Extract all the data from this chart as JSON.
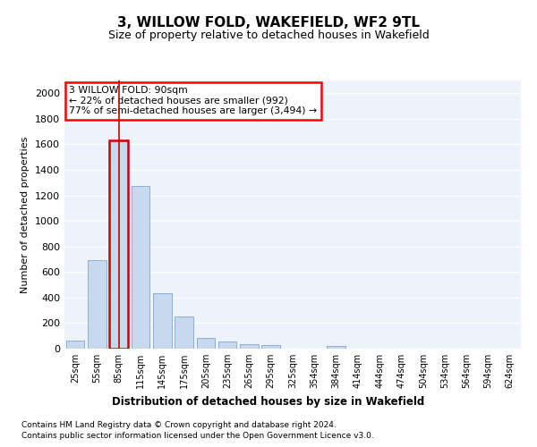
{
  "title": "3, WILLOW FOLD, WAKEFIELD, WF2 9TL",
  "subtitle": "Size of property relative to detached houses in Wakefield",
  "xlabel": "Distribution of detached houses by size in Wakefield",
  "ylabel": "Number of detached properties",
  "bar_color": "#c8d9ee",
  "bar_edge_color": "#8ab0d8",
  "highlight_bar_edge_color": "#cc0000",
  "background_color": "#ffffff",
  "plot_bg_color": "#edf2fb",
  "grid_color": "#ffffff",
  "categories": [
    "25sqm",
    "55sqm",
    "85sqm",
    "115sqm",
    "145sqm",
    "175sqm",
    "205sqm",
    "235sqm",
    "265sqm",
    "295sqm",
    "325sqm",
    "354sqm",
    "384sqm",
    "414sqm",
    "444sqm",
    "474sqm",
    "504sqm",
    "534sqm",
    "564sqm",
    "594sqm",
    "624sqm"
  ],
  "values": [
    65,
    695,
    1630,
    1275,
    435,
    255,
    85,
    55,
    35,
    27,
    0,
    0,
    20,
    0,
    0,
    0,
    0,
    0,
    0,
    0,
    0
  ],
  "ylim": [
    0,
    2100
  ],
  "yticks": [
    0,
    200,
    400,
    600,
    800,
    1000,
    1200,
    1400,
    1600,
    1800,
    2000
  ],
  "property_bin_index": 2,
  "annotation_line1": "3 WILLOW FOLD: 90sqm",
  "annotation_line2": "← 22% of detached houses are smaller (992)",
  "annotation_line3": "77% of semi-detached houses are larger (3,494) →",
  "footnote1": "Contains HM Land Registry data © Crown copyright and database right 2024.",
  "footnote2": "Contains public sector information licensed under the Open Government Licence v3.0."
}
